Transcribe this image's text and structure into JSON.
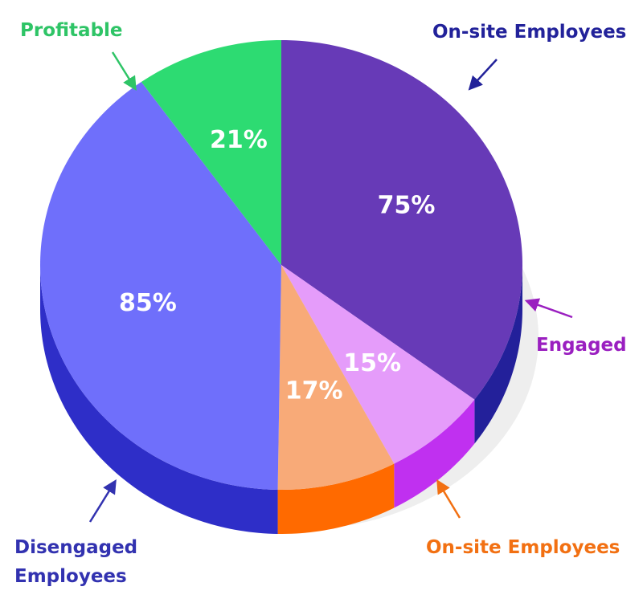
{
  "chart_data": {
    "type": "pie",
    "categories": [
      "On-site Employees",
      "Engaged",
      "On-site Employees",
      "Disengaged Employees",
      "Profitable"
    ],
    "values": [
      75,
      15,
      17,
      85,
      21
    ],
    "value_labels": [
      "75%",
      "15%",
      "17%",
      "85%",
      "21%"
    ],
    "colors": [
      "#673ab7",
      "#e59cfa",
      "#f8aa78",
      "#6f6ffb",
      "#2ddb72"
    ],
    "side_colors": [
      "#23209a",
      "#c030f0",
      "#ff6a00",
      "#2e2ec8",
      "#2aa85a"
    ],
    "label_colors": [
      "#22229a",
      "#9a1fc0",
      "#f27012",
      "#3232b0",
      "#2ec466"
    ]
  }
}
